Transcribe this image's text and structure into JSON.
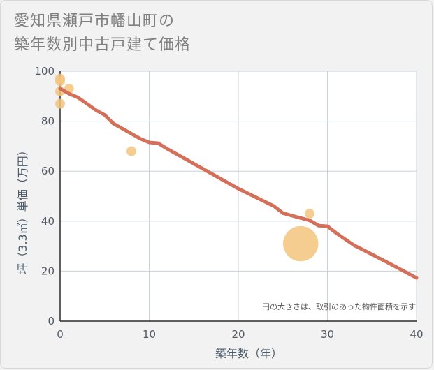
{
  "title_line1": "愛知県瀬戸市幡山町の",
  "title_line2": "築年数別中古戸建て価格",
  "chart_data": {
    "type": "scatter",
    "xlabel": "築年数（年）",
    "ylabel": "坪（3.3㎡）単価（万円）",
    "xlim": [
      0,
      40
    ],
    "ylim": [
      0,
      100
    ],
    "xticks": [
      0,
      10,
      20,
      30,
      40
    ],
    "yticks": [
      0,
      20,
      40,
      60,
      80,
      100
    ],
    "grid": true,
    "note": "円の大きさは、取引のあった物件面積を示す",
    "colors": {
      "points": "#f5c47e",
      "line": "#d4705a",
      "grid": "#c8d2dc"
    },
    "points": [
      {
        "x": 0,
        "y": 97,
        "size": 1
      },
      {
        "x": 0,
        "y": 96,
        "size": 1
      },
      {
        "x": 0,
        "y": 92,
        "size": 1
      },
      {
        "x": 0,
        "y": 87,
        "size": 1
      },
      {
        "x": 1,
        "y": 93,
        "size": 1
      },
      {
        "x": 8,
        "y": 68,
        "size": 1
      },
      {
        "x": 28,
        "y": 43,
        "size": 1
      },
      {
        "x": 27,
        "y": 31,
        "size": 4
      }
    ],
    "trend": {
      "x": [
        0,
        1,
        2,
        3,
        4,
        5,
        6,
        7,
        8,
        9,
        10,
        11,
        12,
        14,
        16,
        18,
        20,
        22,
        24,
        25,
        26,
        28,
        29,
        30,
        31,
        33,
        35,
        37,
        40
      ],
      "y": [
        93,
        91,
        89.5,
        87,
        84.5,
        82.5,
        79,
        77,
        75,
        73,
        71.5,
        71.2,
        69,
        65,
        61,
        57,
        53,
        49.5,
        46,
        43.2,
        42.2,
        40.3,
        38.2,
        38,
        35.2,
        30.3,
        26.7,
        23,
        17.3
      ]
    }
  }
}
